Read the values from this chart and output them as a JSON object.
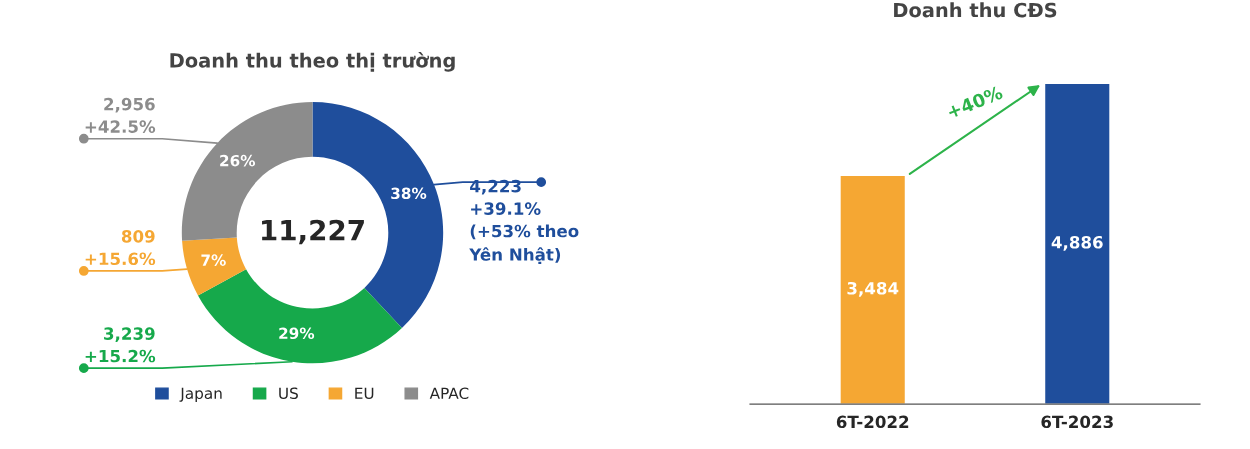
{
  "chart_data": [
    {
      "type": "donut",
      "title": "Doanh thu theo thị trường",
      "categories": [
        "Japan",
        "US",
        "EU",
        "APAC"
      ],
      "values": [
        38,
        29,
        7,
        26
      ],
      "colors": [
        "#1f4e9c",
        "#16a94b",
        "#f5a733",
        "#8c8c8c"
      ],
      "value_labels": [
        "38%",
        "29%",
        "7%",
        "26%"
      ],
      "annotations": [
        "11,227",
        {
          "text": "4,223\n+39.1%\n(+53% theo\nYên Nhật)",
          "x": "Japan"
        },
        {
          "text": "3,239\n+15.2%",
          "x": "US"
        },
        {
          "text": "809\n+15.6%",
          "x": "EU"
        },
        {
          "text": "2,956\n+42.5%",
          "x": "APAC"
        }
      ],
      "legend": "bottom"
    },
    {
      "type": "bar",
      "title": "Doanh thu CĐS",
      "categories": [
        "6T-2022",
        "6T-2023"
      ],
      "values": [
        3484,
        4886
      ],
      "colors": [
        "#f5a733",
        "#1f4e9c"
      ],
      "value_labels": [
        "3,484",
        "4,886"
      ],
      "annotations": [
        "+40%"
      ]
    }
  ]
}
